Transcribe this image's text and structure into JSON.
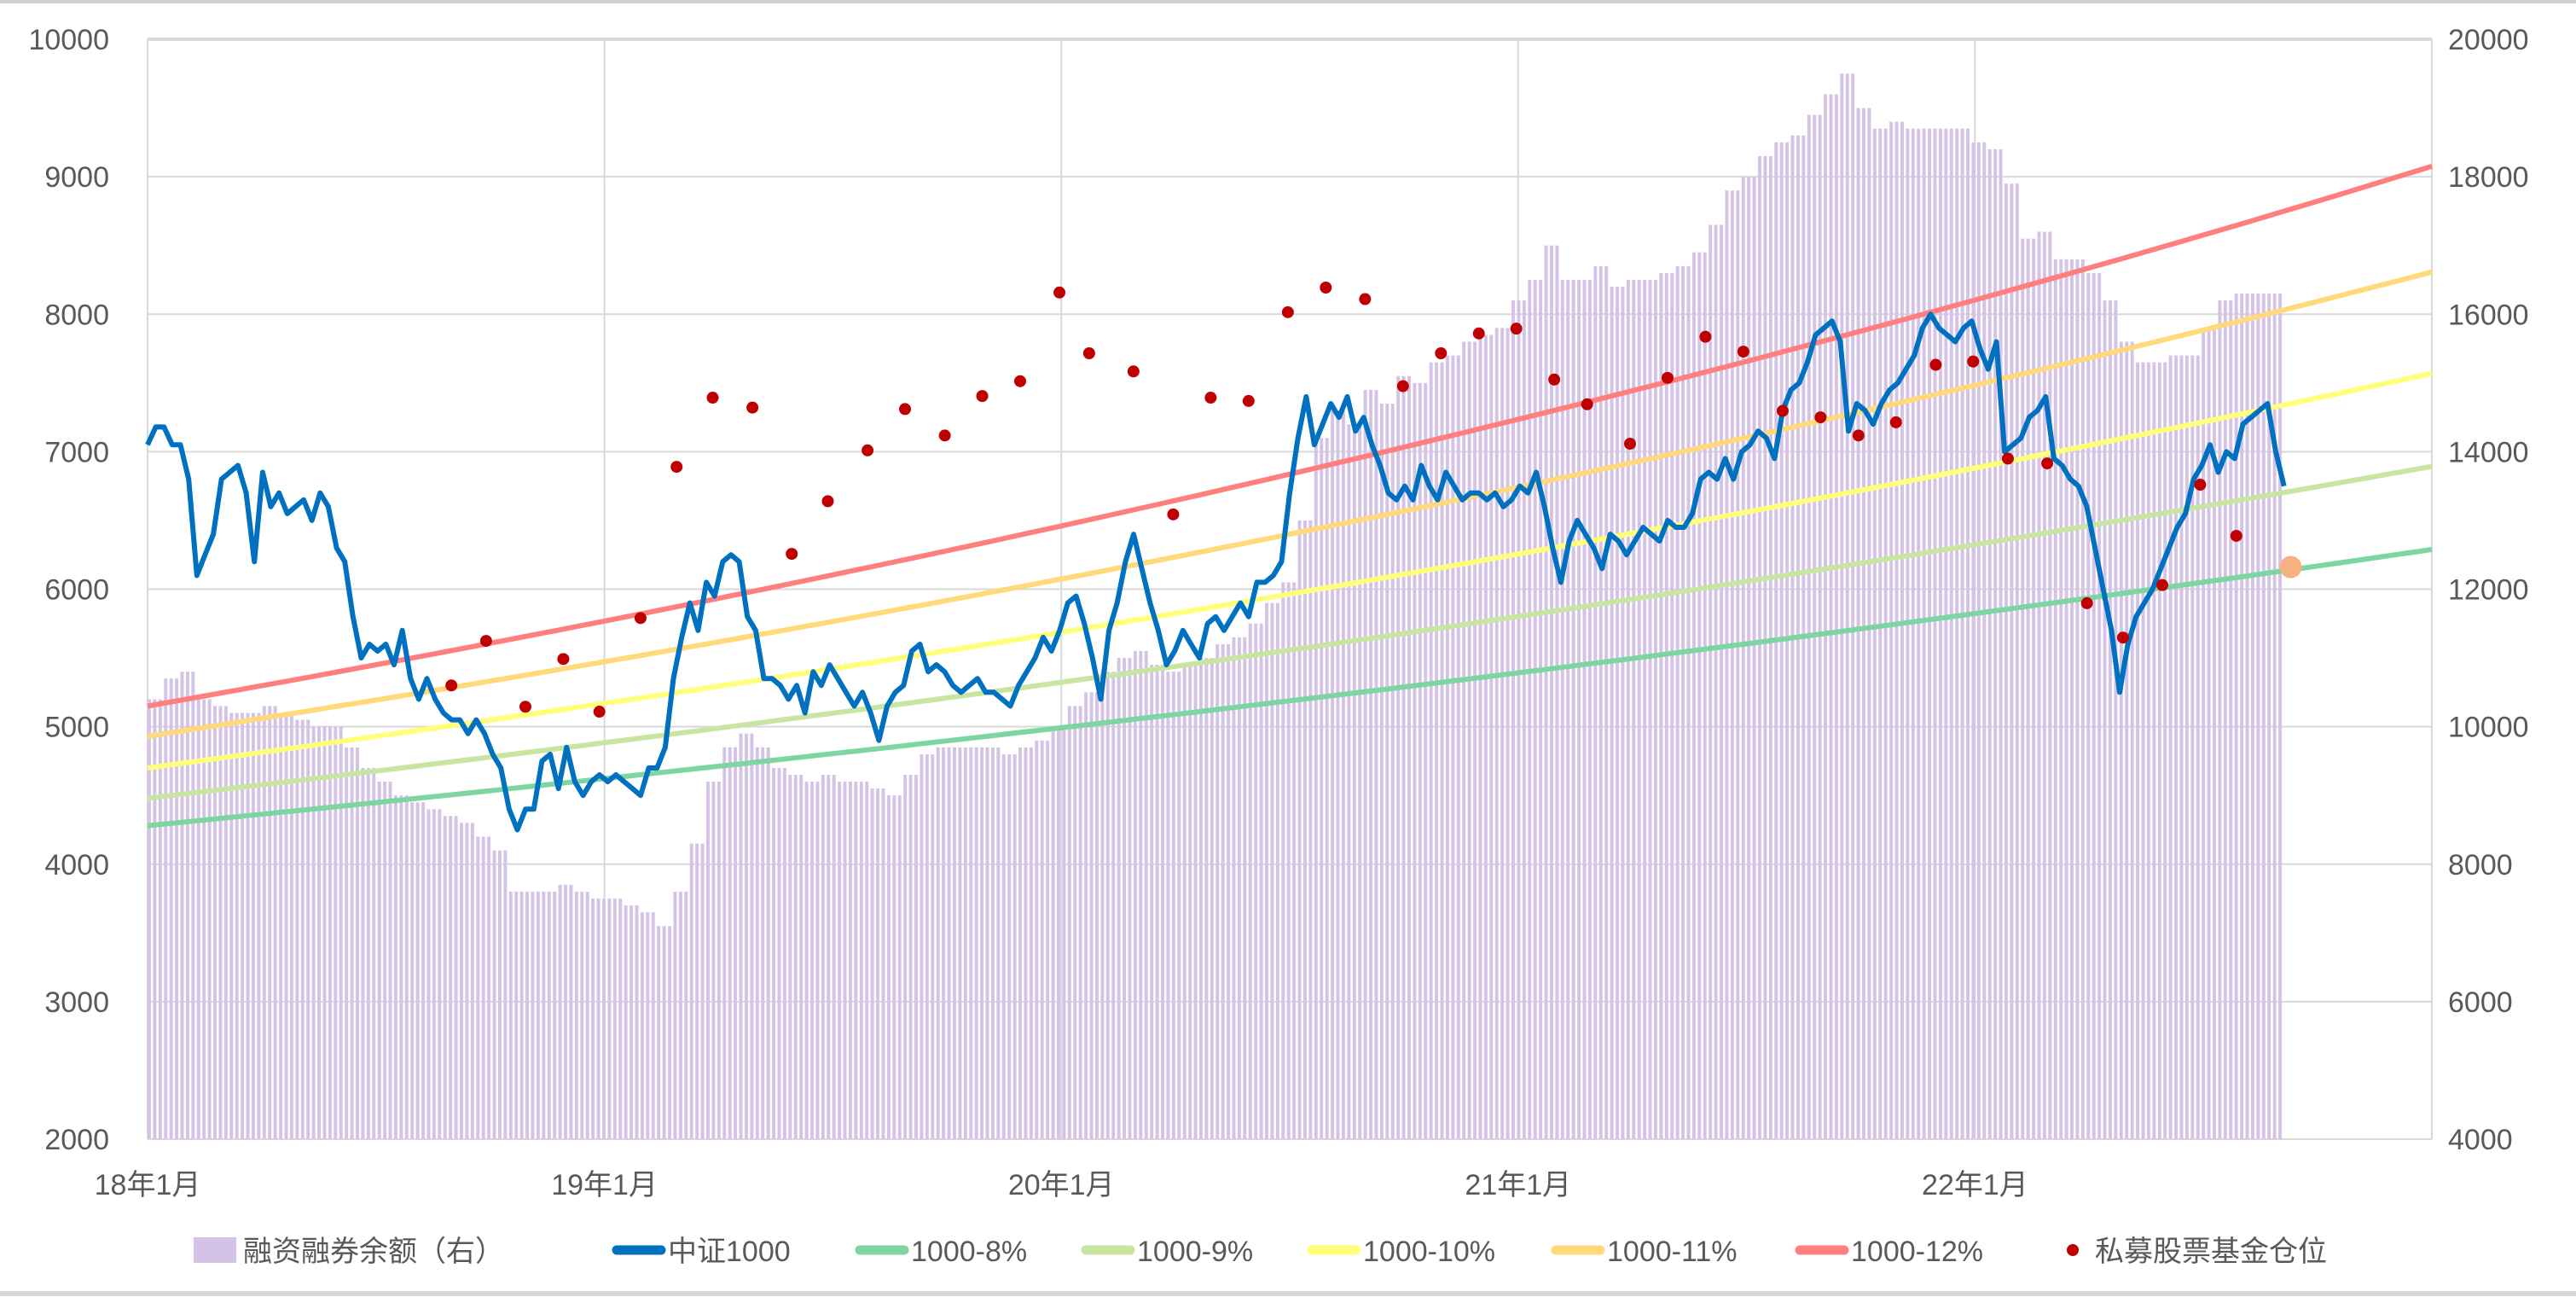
{
  "chart_data": {
    "type": "line",
    "title": "",
    "x_ticks": [
      "18年1月",
      "19年1月",
      "20年1月",
      "21年1月",
      "22年1月"
    ],
    "x_tick_years": [
      2018,
      2019,
      2020,
      2021,
      2022
    ],
    "xlim_years": [
      2018.0,
      2023.0
    ],
    "y_left": {
      "ylim": [
        2000,
        10000
      ],
      "ticks": [
        "2000",
        "3000",
        "4000",
        "5000",
        "6000",
        "7000",
        "8000",
        "9000",
        "10000"
      ]
    },
    "y_right": {
      "ylim": [
        4000,
        20000
      ],
      "ticks": [
        "4000",
        "6000",
        "8000",
        "10000",
        "12000",
        "14000",
        "16000",
        "18000",
        "20000"
      ]
    },
    "grid": true,
    "legend_position": "bottom",
    "series": [
      {
        "name": "融资融券余额（右）",
        "kind": "bar",
        "axis": "right",
        "color": "#d4c3e6",
        "x_start": 2018.0,
        "x_step_years": 0.03597,
        "values": [
          10400,
          10700,
          10800,
          10400,
          10300,
          10200,
          10200,
          10300,
          10200,
          10100,
          10000,
          10000,
          9700,
          9400,
          9200,
          9000,
          8900,
          8800,
          8700,
          8600,
          8400,
          8200,
          7600,
          7600,
          7600,
          7700,
          7600,
          7500,
          7500,
          7400,
          7300,
          7100,
          7600,
          8300,
          9200,
          9700,
          9900,
          9700,
          9400,
          9300,
          9200,
          9300,
          9200,
          9200,
          9100,
          9000,
          9300,
          9600,
          9700,
          9700,
          9700,
          9700,
          9600,
          9700,
          9800,
          10000,
          10300,
          10500,
          10800,
          11000,
          11100,
          10900,
          10800,
          10900,
          11000,
          11200,
          11300,
          11500,
          11800,
          12100,
          13000,
          14200,
          14600,
          14400,
          14900,
          14700,
          15100,
          15000,
          15300,
          15400,
          15600,
          15700,
          15800,
          16200,
          16500,
          17000,
          16500,
          16500,
          16700,
          16400,
          16500,
          16500,
          16600,
          16700,
          16900,
          17300,
          17800,
          18000,
          18300,
          18500,
          18600,
          18900,
          19200,
          19500,
          19000,
          18700,
          18800,
          18700,
          18700,
          18700,
          18700,
          18500,
          18400,
          17900,
          17100,
          17200,
          16800,
          16800,
          16600,
          16200,
          15600,
          15300,
          15300,
          15400,
          15400,
          15800,
          16200,
          16300,
          16300,
          16300
        ]
      },
      {
        "name": "中证1000",
        "kind": "line",
        "axis": "left",
        "color": "#0070c0",
        "x_start": 2018.0,
        "x_step_years": 0.017986,
        "values": [
          7050,
          7180,
          7180,
          7050,
          7050,
          6800,
          6100,
          6250,
          6400,
          6800,
          6850,
          6900,
          6700,
          6200,
          6850,
          6600,
          6700,
          6550,
          6600,
          6650,
          6500,
          6700,
          6600,
          6300,
          6200,
          5800,
          5500,
          5600,
          5550,
          5600,
          5450,
          5700,
          5350,
          5200,
          5350,
          5200,
          5100,
          5050,
          5050,
          4950,
          5050,
          4950,
          4800,
          4700,
          4400,
          4250,
          4400,
          4400,
          4750,
          4800,
          4550,
          4850,
          4600,
          4500,
          4600,
          4650,
          4600,
          4650,
          4600,
          4550,
          4500,
          4700,
          4700,
          4850,
          5350,
          5650,
          5900,
          5700,
          6050,
          5950,
          6200,
          6250,
          6200,
          5800,
          5700,
          5350,
          5350,
          5300,
          5200,
          5300,
          5100,
          5400,
          5300,
          5450,
          5350,
          5250,
          5150,
          5250,
          5100,
          4900,
          5150,
          5250,
          5300,
          5550,
          5600,
          5400,
          5450,
          5400,
          5300,
          5250,
          5300,
          5350,
          5250,
          5250,
          5200,
          5150,
          5300,
          5400,
          5500,
          5650,
          5550,
          5700,
          5900,
          5950,
          5750,
          5500,
          5200,
          5700,
          5900,
          6200,
          6400,
          6150,
          5900,
          5700,
          5450,
          5550,
          5700,
          5600,
          5500,
          5750,
          5800,
          5700,
          5800,
          5900,
          5800,
          6050,
          6050,
          6100,
          6200,
          6700,
          7100,
          7400,
          7050,
          7200,
          7350,
          7250,
          7400,
          7150,
          7250,
          7050,
          6900,
          6700,
          6650,
          6750,
          6650,
          6900,
          6750,
          6650,
          6850,
          6750,
          6650,
          6700,
          6700,
          6650,
          6700,
          6600,
          6650,
          6750,
          6700,
          6850,
          6600,
          6300,
          6050,
          6350,
          6500,
          6400,
          6300,
          6150,
          6400,
          6350,
          6250,
          6350,
          6450,
          6400,
          6350,
          6500,
          6450,
          6450,
          6550,
          6800,
          6850,
          6800,
          6950,
          6800,
          7000,
          7050,
          7150,
          7100,
          6950,
          7300,
          7450,
          7500,
          7650,
          7850,
          7900,
          7950,
          7800,
          7150,
          7350,
          7300,
          7200,
          7350,
          7450,
          7500,
          7600,
          7700,
          7900,
          8000,
          7900,
          7850,
          7800,
          7900,
          7950,
          7750,
          7600,
          7800,
          7000,
          7050,
          7100,
          7250,
          7300,
          7400,
          6950,
          6900,
          6800,
          6750,
          6600,
          6300,
          6000,
          5700,
          5250,
          5600,
          5800,
          5900,
          6000,
          6150,
          6300,
          6450,
          6550,
          6800,
          6900,
          7050,
          6850,
          7000,
          6950,
          7200,
          7250,
          7300,
          7350,
          7000,
          6750
        ]
      },
      {
        "name": "1000-8%",
        "kind": "trend",
        "axis": "left",
        "color": "#7dd6a2",
        "start_value": 4280,
        "annual_growth": 0.08
      },
      {
        "name": "1000-9%",
        "kind": "trend",
        "axis": "left",
        "color": "#c8e6a2",
        "start_value": 4480,
        "annual_growth": 0.09
      },
      {
        "name": "1000-10%",
        "kind": "trend",
        "axis": "left",
        "color": "#ffff7a",
        "start_value": 4700,
        "annual_growth": 0.1
      },
      {
        "name": "1000-11%",
        "kind": "trend",
        "axis": "left",
        "color": "#ffd97a",
        "start_value": 4930,
        "annual_growth": 0.11
      },
      {
        "name": "1000-12%",
        "kind": "trend",
        "axis": "left",
        "color": "#ff7f7f",
        "start_value": 5150,
        "annual_growth": 0.12
      },
      {
        "name": "私募股票基金仓位",
        "kind": "scatter",
        "axis": "left",
        "color": "#c00000",
        "points": [
          [
            2018.665,
            5300
          ],
          [
            2018.741,
            5624
          ],
          [
            2018.827,
            5145
          ],
          [
            2018.91,
            5492
          ],
          [
            2018.989,
            5109
          ],
          [
            2019.079,
            5790
          ],
          [
            2019.158,
            6890
          ],
          [
            2019.237,
            7393
          ],
          [
            2019.324,
            7321
          ],
          [
            2019.41,
            6257
          ],
          [
            2019.489,
            6640
          ],
          [
            2019.576,
            7010
          ],
          [
            2019.658,
            7310
          ],
          [
            2019.745,
            7118
          ],
          [
            2019.827,
            7405
          ],
          [
            2019.91,
            7513
          ],
          [
            2019.996,
            8158
          ],
          [
            2020.061,
            7716
          ],
          [
            2020.158,
            7584
          ],
          [
            2020.245,
            6544
          ],
          [
            2020.327,
            7393
          ],
          [
            2020.41,
            7369
          ],
          [
            2020.496,
            8015
          ],
          [
            2020.579,
            8194
          ],
          [
            2020.665,
            8110
          ],
          [
            2020.748,
            7477
          ],
          [
            2020.831,
            7716
          ],
          [
            2020.914,
            7860
          ],
          [
            2020.996,
            7895
          ],
          [
            2021.079,
            7525
          ],
          [
            2021.151,
            7345
          ],
          [
            2021.245,
            7058
          ],
          [
            2021.327,
            7537
          ],
          [
            2021.41,
            7836
          ],
          [
            2021.493,
            7728
          ],
          [
            2021.579,
            7297
          ],
          [
            2021.662,
            7250
          ],
          [
            2021.745,
            7118
          ],
          [
            2021.827,
            7214
          ],
          [
            2021.914,
            7632
          ],
          [
            2021.996,
            7656
          ],
          [
            2022.072,
            6950
          ],
          [
            2022.158,
            6915
          ],
          [
            2022.245,
            5898
          ],
          [
            2022.324,
            5648
          ],
          [
            2022.41,
            6030
          ],
          [
            2022.493,
            6760
          ],
          [
            2022.572,
            6388
          ]
        ],
        "highlight_point": [
          2022.691,
          6161
        ],
        "highlight_color": "#f5b182"
      }
    ]
  }
}
